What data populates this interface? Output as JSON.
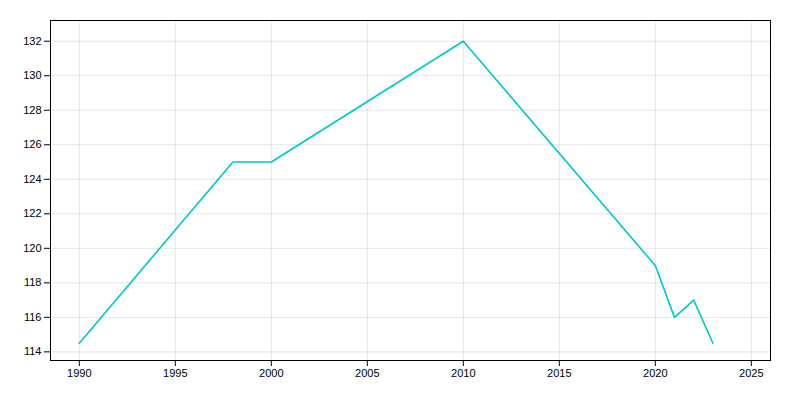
{
  "chart_data": {
    "type": "line",
    "x": [
      1990,
      1998,
      2000,
      2010,
      2020,
      2021,
      2022,
      2023
    ],
    "values": [
      114.5,
      125.0,
      125.0,
      132.0,
      119.0,
      116.0,
      117.0,
      114.5
    ],
    "color": "#00C8C8",
    "xlim": [
      1988.5,
      2026
    ],
    "ylim": [
      113.5,
      133.2
    ],
    "xticks": [
      1990,
      1995,
      2000,
      2005,
      2010,
      2015,
      2020,
      2025
    ],
    "yticks": [
      114,
      116,
      118,
      120,
      122,
      124,
      126,
      128,
      130,
      132
    ],
    "grid": true
  }
}
